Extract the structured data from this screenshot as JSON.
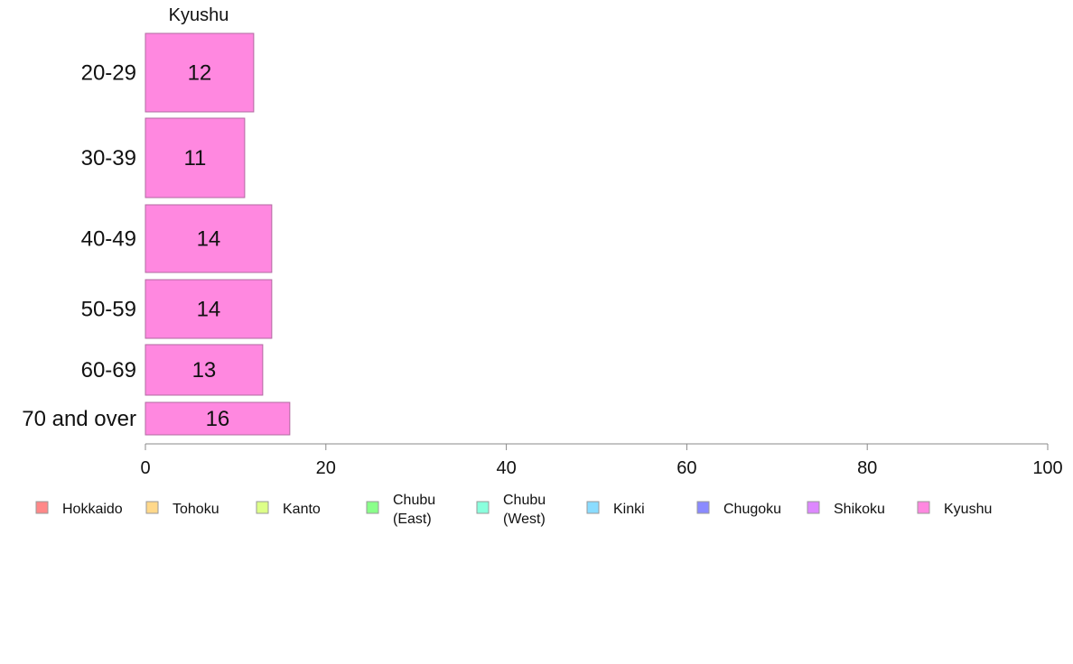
{
  "chart_data": {
    "type": "bar",
    "orientation": "horizontal",
    "column_title": "Kyushu",
    "categories": [
      "20-29",
      "30-39",
      "40-49",
      "50-59",
      "60-69",
      "70 and over"
    ],
    "series": [
      {
        "name": "Kyushu",
        "values": [
          12,
          11,
          14,
          14,
          13,
          16
        ],
        "color": "#ff88e0"
      }
    ],
    "xlim": [
      0,
      100
    ],
    "x_ticks": [
      0,
      20,
      40,
      60,
      80,
      100
    ],
    "x_tick_labels": [
      "0",
      "20",
      "40",
      "60",
      "80",
      "100"
    ],
    "grid": false,
    "legend_position": "bottom",
    "legend": [
      {
        "label": [
          "Hokkaido"
        ],
        "color": "#ff8888"
      },
      {
        "label": [
          "Tohoku"
        ],
        "color": "#ffd88a"
      },
      {
        "label": [
          "Kanto"
        ],
        "color": "#ddff88"
      },
      {
        "label": [
          "Chubu",
          "(East)"
        ],
        "color": "#8aff8a"
      },
      {
        "label": [
          "Chubu",
          "(West)"
        ],
        "color": "#8affdd"
      },
      {
        "label": [
          "Kinki"
        ],
        "color": "#8adcff"
      },
      {
        "label": [
          "Chugoku"
        ],
        "color": "#8a8aff"
      },
      {
        "label": [
          "Shikoku"
        ],
        "color": "#dd88ff"
      },
      {
        "label": [
          "Kyushu"
        ],
        "color": "#ff88e0"
      }
    ]
  }
}
